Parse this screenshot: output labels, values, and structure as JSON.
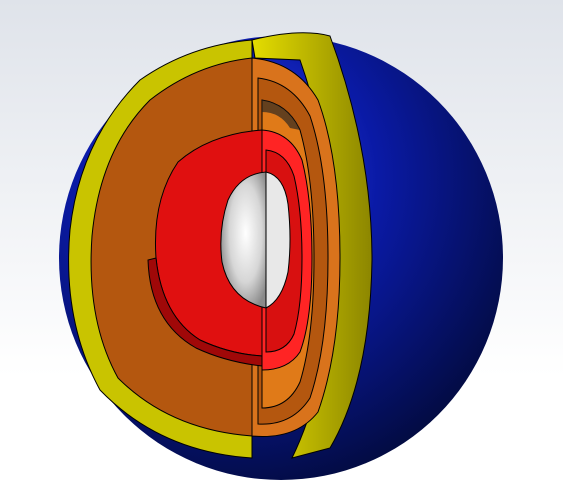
{
  "scene": {
    "background_top": "#dfe3ea",
    "background_bottom": "#ffffff"
  },
  "layers": [
    {
      "name": "crust",
      "color": "#0a1aa6"
    },
    {
      "name": "upper-mantle",
      "color": "#c9c400"
    },
    {
      "name": "lower-mantle",
      "color": "#b4570f"
    },
    {
      "name": "transition-layer",
      "color": "#d9731c"
    },
    {
      "name": "outer-core",
      "color": "#e01010"
    },
    {
      "name": "inner-core",
      "color": "#c9c9c9"
    }
  ]
}
